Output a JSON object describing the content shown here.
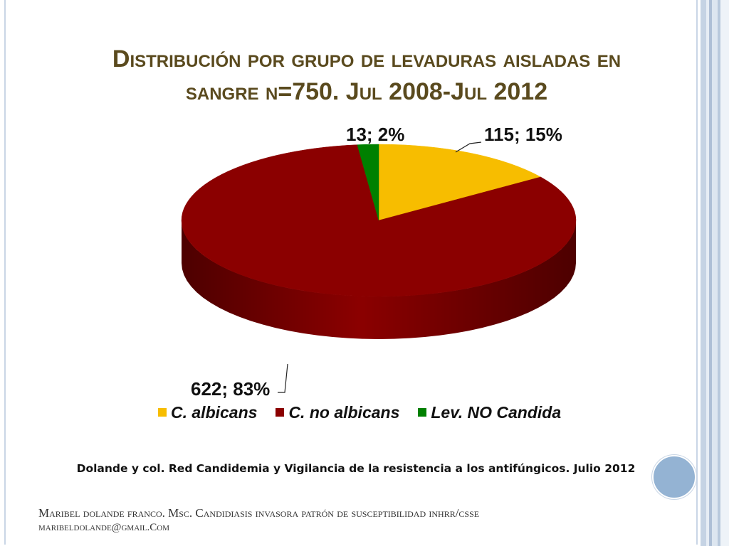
{
  "slide": {
    "title_line1": "Distribución por grupo de levaduras aisladas en",
    "title_line2": "sangre n=750. Jul 2008-Jul 2012",
    "source": "Dolande  y col. Red Candidemia  y Vigilancia de la resistencia a los antifúngicos. Julio 2012",
    "footer_line1": "Maribel dolande franco. Msc. Candidiasis invasora patrón de susceptibilidad inhrr/csse",
    "footer_line2": "maribeldolande@gmail.Com"
  },
  "chart_data": {
    "type": "pie",
    "title": "Distribución por grupo de levaduras aisladas en sangre n=750. Jul 2008-Jul 2012",
    "style": "3d",
    "legend_position": "bottom",
    "categories": [
      "C. albicans",
      "C. no albicans",
      "Lev. NO Candida"
    ],
    "values": [
      115,
      622,
      13
    ],
    "percents": [
      15,
      83,
      2
    ],
    "data_labels": [
      "115; 15%",
      "622; 83%",
      "13; 2%"
    ],
    "colors": [
      "#f7bd00",
      "#8b0000",
      "#008000"
    ],
    "side_colors": [
      "#a37d00",
      "#4d0000",
      "#005000"
    ]
  }
}
